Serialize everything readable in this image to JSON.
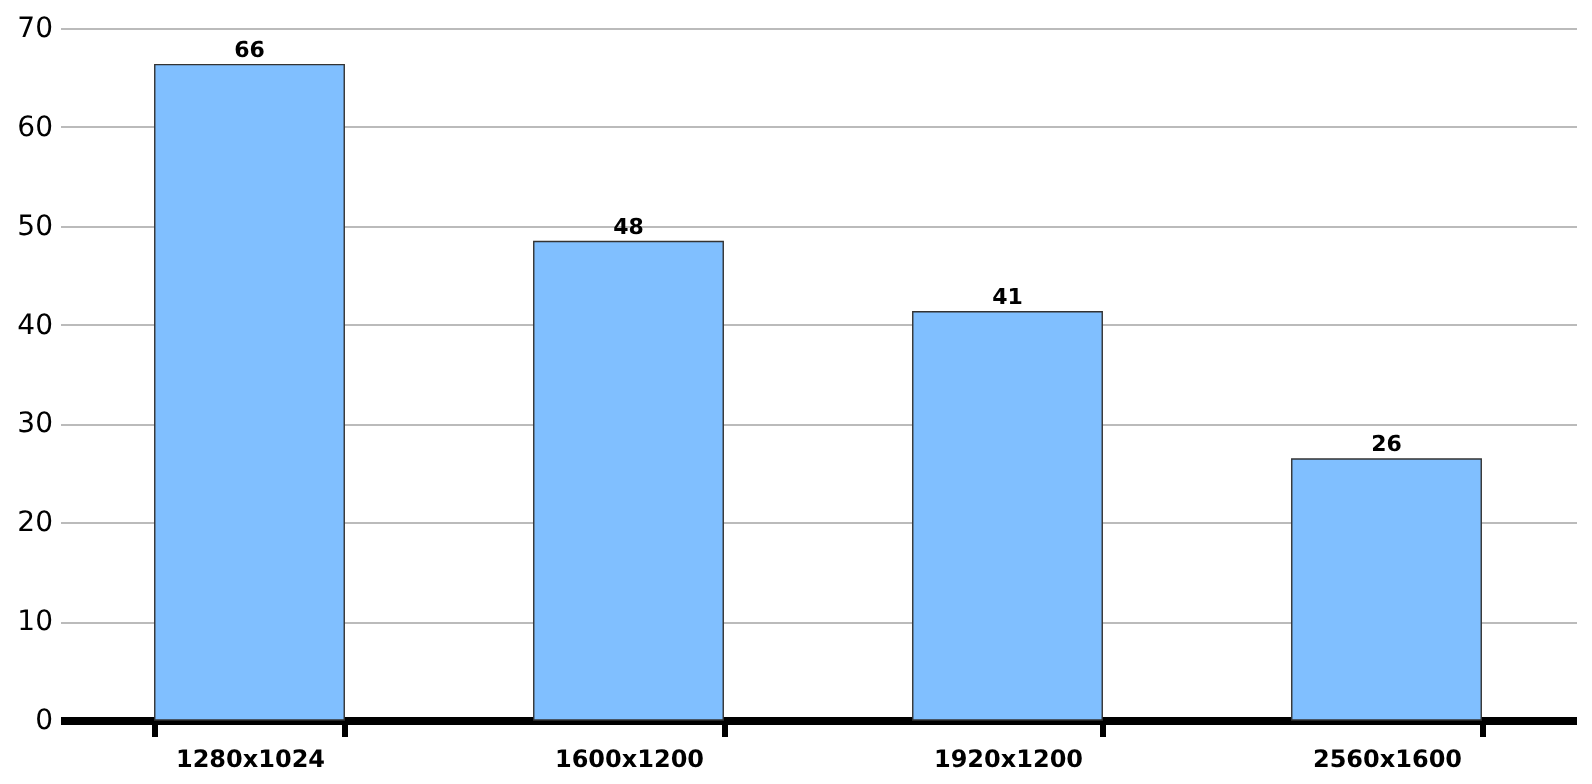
{
  "chart_data": {
    "type": "bar",
    "categories": [
      "1280x1024",
      "1600x1200",
      "1920x1200",
      "2560x1600"
    ],
    "values": [
      66.3,
      48.4,
      41.3,
      26.4
    ],
    "value_labels": [
      "66",
      "48",
      "41",
      "26"
    ],
    "color": "#80bfff",
    "ylim": [
      0,
      70
    ],
    "yticks": [
      0,
      10,
      20,
      30,
      40,
      50,
      60,
      70
    ],
    "grid": "y"
  }
}
